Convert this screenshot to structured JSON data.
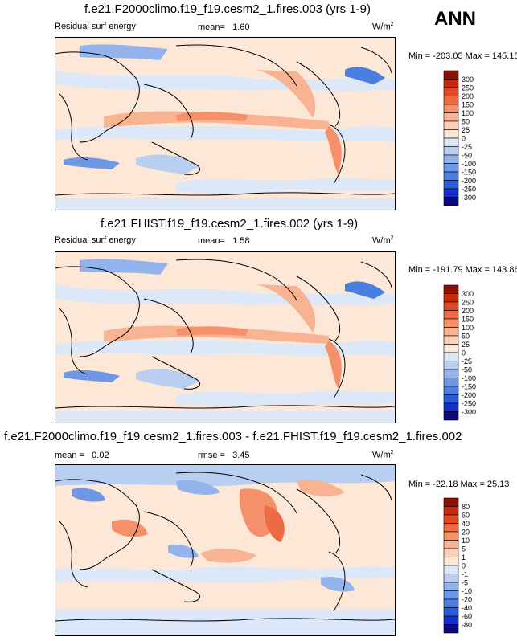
{
  "season": "ANN",
  "panels": [
    {
      "title": "f.e21.F2000climo.f19_f19.cesm2_1.fires.003 (yrs 1-9)",
      "variable": "Residual surf energy",
      "stat1_label": "mean=",
      "stat1_value": "1.60",
      "stat2_label": "",
      "stat2_value": "",
      "units": "W/m",
      "units_exp": "2",
      "min_max": "Min = -203.05 Max = 145.15"
    },
    {
      "title": "f.e21.FHIST.f19_f19.cesm2_1.fires.002 (yrs 1-9)",
      "variable": "Residual surf energy",
      "stat1_label": "mean=",
      "stat1_value": "1.58",
      "stat2_label": "",
      "stat2_value": "",
      "units": "W/m",
      "units_exp": "2",
      "min_max": "Min = -191.79 Max = 143.86"
    },
    {
      "title": "f.e21.F2000climo.f19_f19.cesm2_1.fires.003 - f.e21.FHIST.f19_f19.cesm2_1.fires.002",
      "variable": "",
      "stat1_label": "mean =",
      "stat1_value": "0.02",
      "stat2_label": "rmse =",
      "stat2_value": "3.45",
      "units": "W/m",
      "units_exp": "2",
      "min_max": "Min = -22.18 Max = 25.13"
    }
  ],
  "colors": {
    "scale": [
      "#0a0a7a",
      "#1530c8",
      "#2a5cd8",
      "#4a7ee0",
      "#6e98e6",
      "#93b3ec",
      "#b9cff2",
      "#dce8f8",
      "#fde8d8",
      "#fbd2b8",
      "#f8b492",
      "#f4906a",
      "#ee6a42",
      "#e04820",
      "#c82a0e",
      "#8a1002"
    ],
    "land": "#fde8d8"
  },
  "chart_data": [
    {
      "type": "heatmap",
      "title": "f.e21.F2000climo.f19_f19.cesm2_1.fires.003 (yrs 1-9)",
      "variable": "Residual surf energy",
      "units": "W/m2",
      "mean": 1.6,
      "min": -203.05,
      "max": 145.15,
      "colorbar_levels": [
        300,
        250,
        200,
        150,
        100,
        50,
        25,
        0,
        -25,
        -50,
        -100,
        -150,
        -200,
        -250,
        -300
      ],
      "colorbar_labels": [
        "300",
        "250",
        "200",
        "150",
        "100",
        "50",
        "25",
        "0",
        "-25",
        "-50",
        "-100",
        "-150",
        "-200",
        "-250",
        "-300"
      ]
    },
    {
      "type": "heatmap",
      "title": "f.e21.FHIST.f19_f19.cesm2_1.fires.002 (yrs 1-9)",
      "variable": "Residual surf energy",
      "units": "W/m2",
      "mean": 1.58,
      "min": -191.79,
      "max": 143.86,
      "colorbar_levels": [
        300,
        250,
        200,
        150,
        100,
        50,
        25,
        0,
        -25,
        -50,
        -100,
        -150,
        -200,
        -250,
        -300
      ],
      "colorbar_labels": [
        "300",
        "250",
        "200",
        "150",
        "100",
        "50",
        "25",
        "0",
        "-25",
        "-50",
        "-100",
        "-150",
        "-200",
        "-250",
        "-300"
      ]
    },
    {
      "type": "heatmap",
      "title": "f.e21.F2000climo.f19_f19.cesm2_1.fires.003 - f.e21.FHIST.f19_f19.cesm2_1.fires.002",
      "units": "W/m2",
      "mean": 0.02,
      "rmse": 3.45,
      "min": -22.18,
      "max": 25.13,
      "colorbar_levels": [
        80,
        60,
        40,
        20,
        10,
        5,
        1,
        0,
        -1,
        -5,
        -10,
        -20,
        -40,
        -60,
        -80
      ],
      "colorbar_labels": [
        "80",
        "60",
        "40",
        "20",
        "10",
        "5",
        "1",
        "0",
        "-1",
        "-5",
        "-10",
        "-20",
        "-40",
        "-60",
        "-80"
      ]
    }
  ]
}
